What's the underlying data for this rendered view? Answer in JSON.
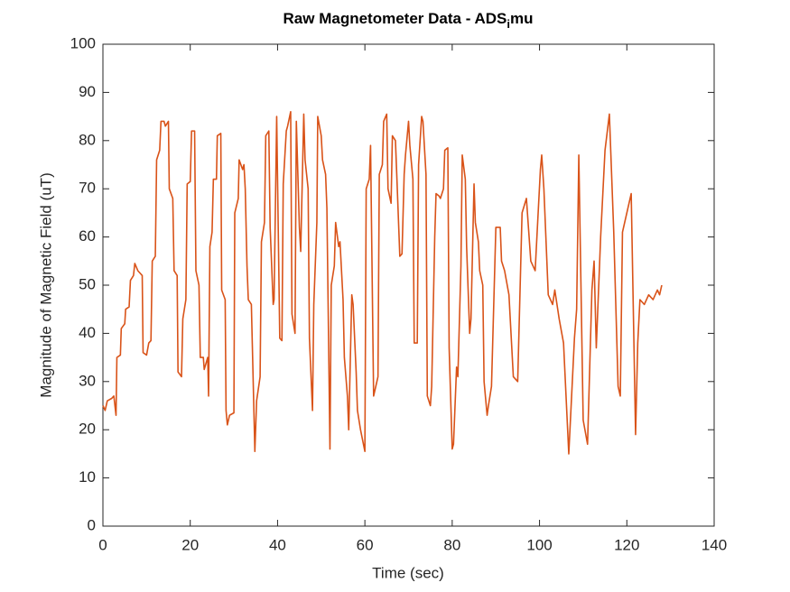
{
  "chart_data": {
    "type": "line",
    "title": {
      "text": "Raw Magnetometer Data - ADS",
      "subscript": "i",
      "suffix": "mu"
    },
    "x_label": "Time (sec)",
    "y_label": "Magnitude of Magnetic Field (uT)",
    "color": "#d95319",
    "grid": false,
    "xlim": [
      0,
      140
    ],
    "xticks": [
      0,
      20,
      40,
      60,
      80,
      100,
      120,
      140
    ],
    "ylim": [
      0,
      100
    ],
    "yticks": [
      0,
      10,
      20,
      30,
      40,
      50,
      60,
      70,
      80,
      90,
      100
    ],
    "x": [
      0,
      0.5,
      1,
      2,
      2.5,
      3,
      3.2,
      4,
      4.2,
      5,
      5.2,
      6,
      6.3,
      7,
      7.3,
      8,
      8.5,
      9,
      9.2,
      10,
      10.5,
      11,
      11.3,
      12,
      12.3,
      13,
      13.3,
      14,
      14.3,
      15,
      15.2,
      16,
      16.3,
      17,
      17.2,
      18,
      18.3,
      19,
      19.3,
      20,
      20.3,
      21,
      21.3,
      22,
      22.3,
      23,
      23.2,
      24,
      24.2,
      24.5,
      25,
      25.3,
      26,
      26.2,
      27,
      27.2,
      28,
      28.2,
      28.5,
      29,
      30,
      30.2,
      31,
      31.2,
      32,
      32.3,
      32.6,
      33,
      33.3,
      34,
      34.8,
      35.2,
      36,
      36.3,
      37,
      37.3,
      38,
      38.3,
      39,
      39.2,
      39.8,
      40.5,
      41,
      41.3,
      42,
      42.3,
      43,
      43.3,
      44,
      44.3,
      45,
      45.3,
      46,
      46.3,
      47,
      47.3,
      48,
      48.3,
      49,
      49.2,
      50,
      50.3,
      51,
      51.3,
      52,
      52.3,
      53,
      53.3,
      54,
      54.3,
      55,
      55.3,
      56,
      56.3,
      57,
      57.3,
      58,
      58.3,
      59,
      60,
      60.3,
      61,
      61.3,
      62,
      62.5,
      63,
      63.3,
      64,
      64.3,
      65,
      65.3,
      66,
      66.3,
      67,
      67.3,
      68,
      68.5,
      69,
      69.3,
      70,
      70.3,
      71,
      71.3,
      72,
      72.3,
      73,
      73.3,
      74,
      74.3,
      75,
      75.3,
      76,
      76.3,
      77,
      77.3,
      78,
      78.3,
      79,
      79.3,
      80,
      80.3,
      81,
      81.3,
      82,
      82.3,
      83,
      83.3,
      84,
      84.3,
      85,
      85.3,
      86,
      86.3,
      87,
      87.3,
      88,
      88.3,
      89,
      90,
      91,
      91.3,
      92,
      93,
      94,
      95,
      96,
      97,
      98,
      99,
      100.2,
      100.5,
      101,
      102,
      103,
      103.5,
      104.5,
      105.5,
      106.7,
      108,
      108.5,
      109,
      110,
      111,
      112,
      112.5,
      113,
      114,
      115,
      116,
      117,
      118,
      118.5,
      119,
      121,
      122,
      122.5,
      123,
      124,
      125,
      126,
      127,
      127.5,
      128
    ],
    "values": [
      25,
      24,
      26,
      26.5,
      27,
      23,
      35,
      35.5,
      41,
      42,
      45,
      45.5,
      51,
      52,
      54.5,
      53,
      52.5,
      52,
      36,
      35.5,
      38,
      38.5,
      55,
      56,
      76,
      78,
      84,
      84,
      83,
      84,
      70,
      68,
      53,
      52,
      32,
      31,
      43,
      47,
      71,
      71.5,
      82,
      82,
      53,
      50,
      35,
      35,
      32.5,
      35,
      27,
      58,
      61,
      72,
      72,
      81,
      81.5,
      49,
      47,
      24,
      21,
      23,
      23.5,
      65,
      68,
      76,
      74,
      75,
      70,
      54,
      47,
      46,
      15.5,
      26,
      31,
      59,
      63,
      81,
      82,
      62,
      46,
      47,
      85,
      39,
      38.5,
      71,
      82,
      83,
      86,
      44,
      40,
      84,
      62,
      57,
      85.5,
      76,
      70,
      39,
      24,
      46,
      63,
      85,
      81,
      76,
      73,
      66,
      16,
      50,
      54,
      63,
      58,
      59,
      47,
      35,
      27,
      20,
      48,
      46,
      32,
      24,
      20,
      15.5,
      70,
      72,
      79,
      27,
      29,
      31,
      73,
      75,
      84,
      85.5,
      70,
      67,
      81,
      80,
      73,
      56,
      56.5,
      73,
      77,
      84,
      79,
      72,
      38,
      38,
      75,
      85,
      84,
      73,
      27,
      25,
      29,
      60,
      69,
      68.5,
      68,
      70,
      78,
      78.5,
      37,
      16,
      17,
      33,
      31,
      54,
      77,
      72,
      58,
      40,
      43,
      71,
      63,
      59,
      53,
      50,
      30,
      23,
      25,
      29,
      62,
      62,
      55,
      53,
      48,
      31,
      30,
      65,
      68,
      55,
      53,
      74,
      77,
      70,
      48,
      46,
      49,
      43,
      38,
      15,
      39,
      45,
      77,
      22,
      17,
      49,
      55,
      37,
      60,
      78,
      85.5,
      61,
      29,
      27,
      61,
      69,
      19,
      38,
      47,
      46,
      48,
      47,
      49,
      48,
      50
    ]
  }
}
